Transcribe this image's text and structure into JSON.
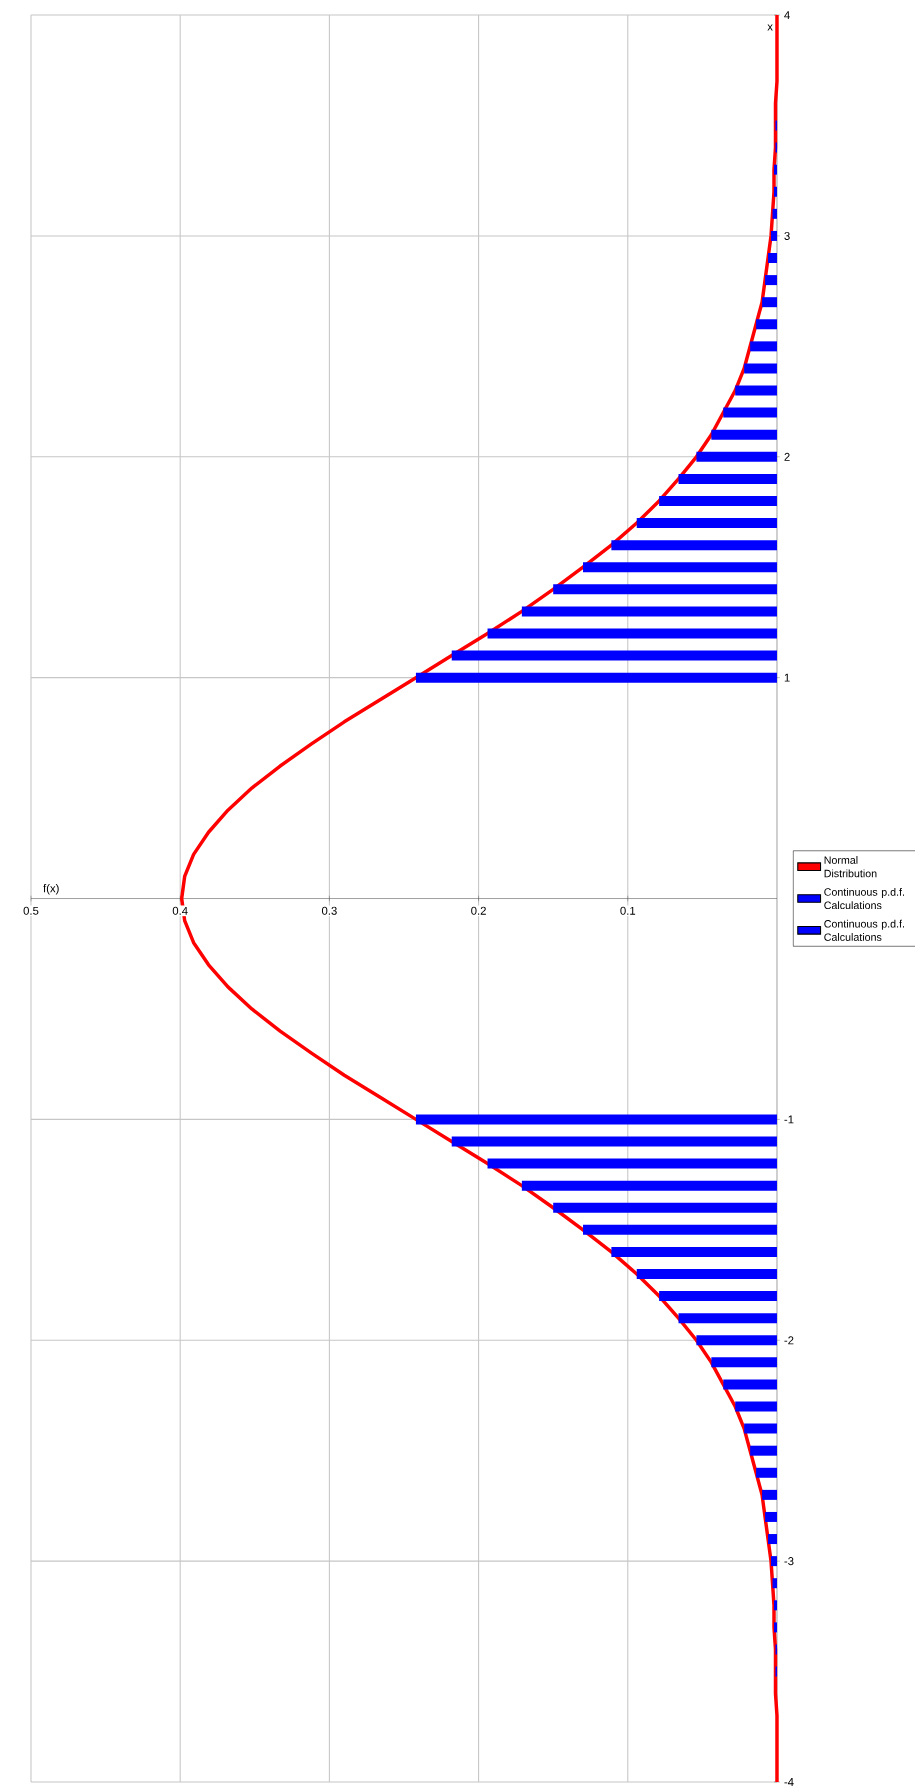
{
  "chart_data": {
    "type": "bar",
    "orientation": "horizontal",
    "xlabel": "f(x)",
    "ylabel": "x",
    "xlim": [
      0.5,
      0
    ],
    "ylim": [
      -4,
      4
    ],
    "xticks": [
      0.1,
      0.2,
      0.3,
      0.4,
      0.5
    ],
    "yticks": [
      -4,
      -3,
      -2,
      -1,
      1,
      2,
      3,
      4
    ],
    "grid": true,
    "legend": "right",
    "series": [
      {
        "name": "Normal Distribution",
        "type": "line",
        "color": "#ff0000",
        "x": [
          -4,
          -3.9,
          -3.8,
          -3.7,
          -3.6,
          -3.5,
          -3.4,
          -3.3,
          -3.2,
          -3.1,
          -3,
          -2.9,
          -2.8,
          -2.7,
          -2.6,
          -2.5,
          -2.4,
          -2.3,
          -2.2,
          -2.1,
          -2,
          -1.9,
          -1.8,
          -1.7,
          -1.6,
          -1.5,
          -1.4,
          -1.3,
          -1.2,
          -1.1,
          -1,
          -0.9,
          -0.8,
          -0.7,
          -0.6,
          -0.5,
          -0.4,
          -0.3,
          -0.2,
          -0.1,
          0,
          0.1,
          0.2,
          0.3,
          0.4,
          0.5,
          0.6,
          0.7,
          0.8,
          0.9,
          1,
          1.1,
          1.2,
          1.3,
          1.4,
          1.5,
          1.6,
          1.7,
          1.8,
          1.9,
          2,
          2.1,
          2.2,
          2.3,
          2.4,
          2.5,
          2.6,
          2.7,
          2.8,
          2.9,
          3,
          3.1,
          3.2,
          3.3,
          3.4,
          3.5,
          3.6,
          3.7,
          3.8,
          3.9,
          4
        ],
        "values": [
          0,
          0,
          0,
          0,
          0.001,
          0.001,
          0.001,
          0.002,
          0.002,
          0.003,
          0.004,
          0.006,
          0.008,
          0.01,
          0.014,
          0.018,
          0.022,
          0.028,
          0.036,
          0.044,
          0.054,
          0.066,
          0.079,
          0.094,
          0.111,
          0.13,
          0.15,
          0.171,
          0.194,
          0.218,
          0.242,
          0.266,
          0.29,
          0.312,
          0.333,
          0.352,
          0.368,
          0.381,
          0.391,
          0.397,
          0.399,
          0.397,
          0.391,
          0.381,
          0.368,
          0.352,
          0.333,
          0.312,
          0.29,
          0.266,
          0.242,
          0.218,
          0.194,
          0.171,
          0.15,
          0.13,
          0.111,
          0.094,
          0.079,
          0.066,
          0.054,
          0.044,
          0.036,
          0.028,
          0.022,
          0.018,
          0.014,
          0.01,
          0.008,
          0.006,
          0.004,
          0.003,
          0.002,
          0.002,
          0.001,
          0.001,
          0.001,
          0,
          0,
          0,
          0
        ]
      },
      {
        "name": "Continuous p.d.f. Calculations",
        "color": "#0000ff",
        "x": [
          -3.5,
          -3.4,
          -3.3,
          -3.2,
          -3.1,
          -3,
          -2.9,
          -2.8,
          -2.7,
          -2.6,
          -2.5,
          -2.4,
          -2.3,
          -2.2,
          -2.1,
          -2,
          -1.9,
          -1.8,
          -1.7,
          -1.6,
          -1.5,
          -1.4,
          -1.3,
          -1.2,
          -1.1,
          -1
        ],
        "values": [
          0.001,
          0.001,
          0.002,
          0.002,
          0.003,
          0.004,
          0.006,
          0.008,
          0.01,
          0.014,
          0.018,
          0.022,
          0.028,
          0.036,
          0.044,
          0.054,
          0.066,
          0.079,
          0.094,
          0.111,
          0.13,
          0.15,
          0.171,
          0.194,
          0.218,
          0.242
        ]
      },
      {
        "name": "Continuous p.d.f. Calculations",
        "color": "#0000ff",
        "x": [
          1,
          1.1,
          1.2,
          1.3,
          1.4,
          1.5,
          1.6,
          1.7,
          1.8,
          1.9,
          2,
          2.1,
          2.2,
          2.3,
          2.4,
          2.5,
          2.6,
          2.7,
          2.8,
          2.9,
          3,
          3.1,
          3.2,
          3.3,
          3.4,
          3.5
        ],
        "values": [
          0.242,
          0.218,
          0.194,
          0.171,
          0.15,
          0.13,
          0.111,
          0.094,
          0.079,
          0.066,
          0.054,
          0.044,
          0.036,
          0.028,
          0.022,
          0.018,
          0.014,
          0.01,
          0.008,
          0.006,
          0.004,
          0.003,
          0.002,
          0.002,
          0.001,
          0.001
        ]
      }
    ]
  }
}
